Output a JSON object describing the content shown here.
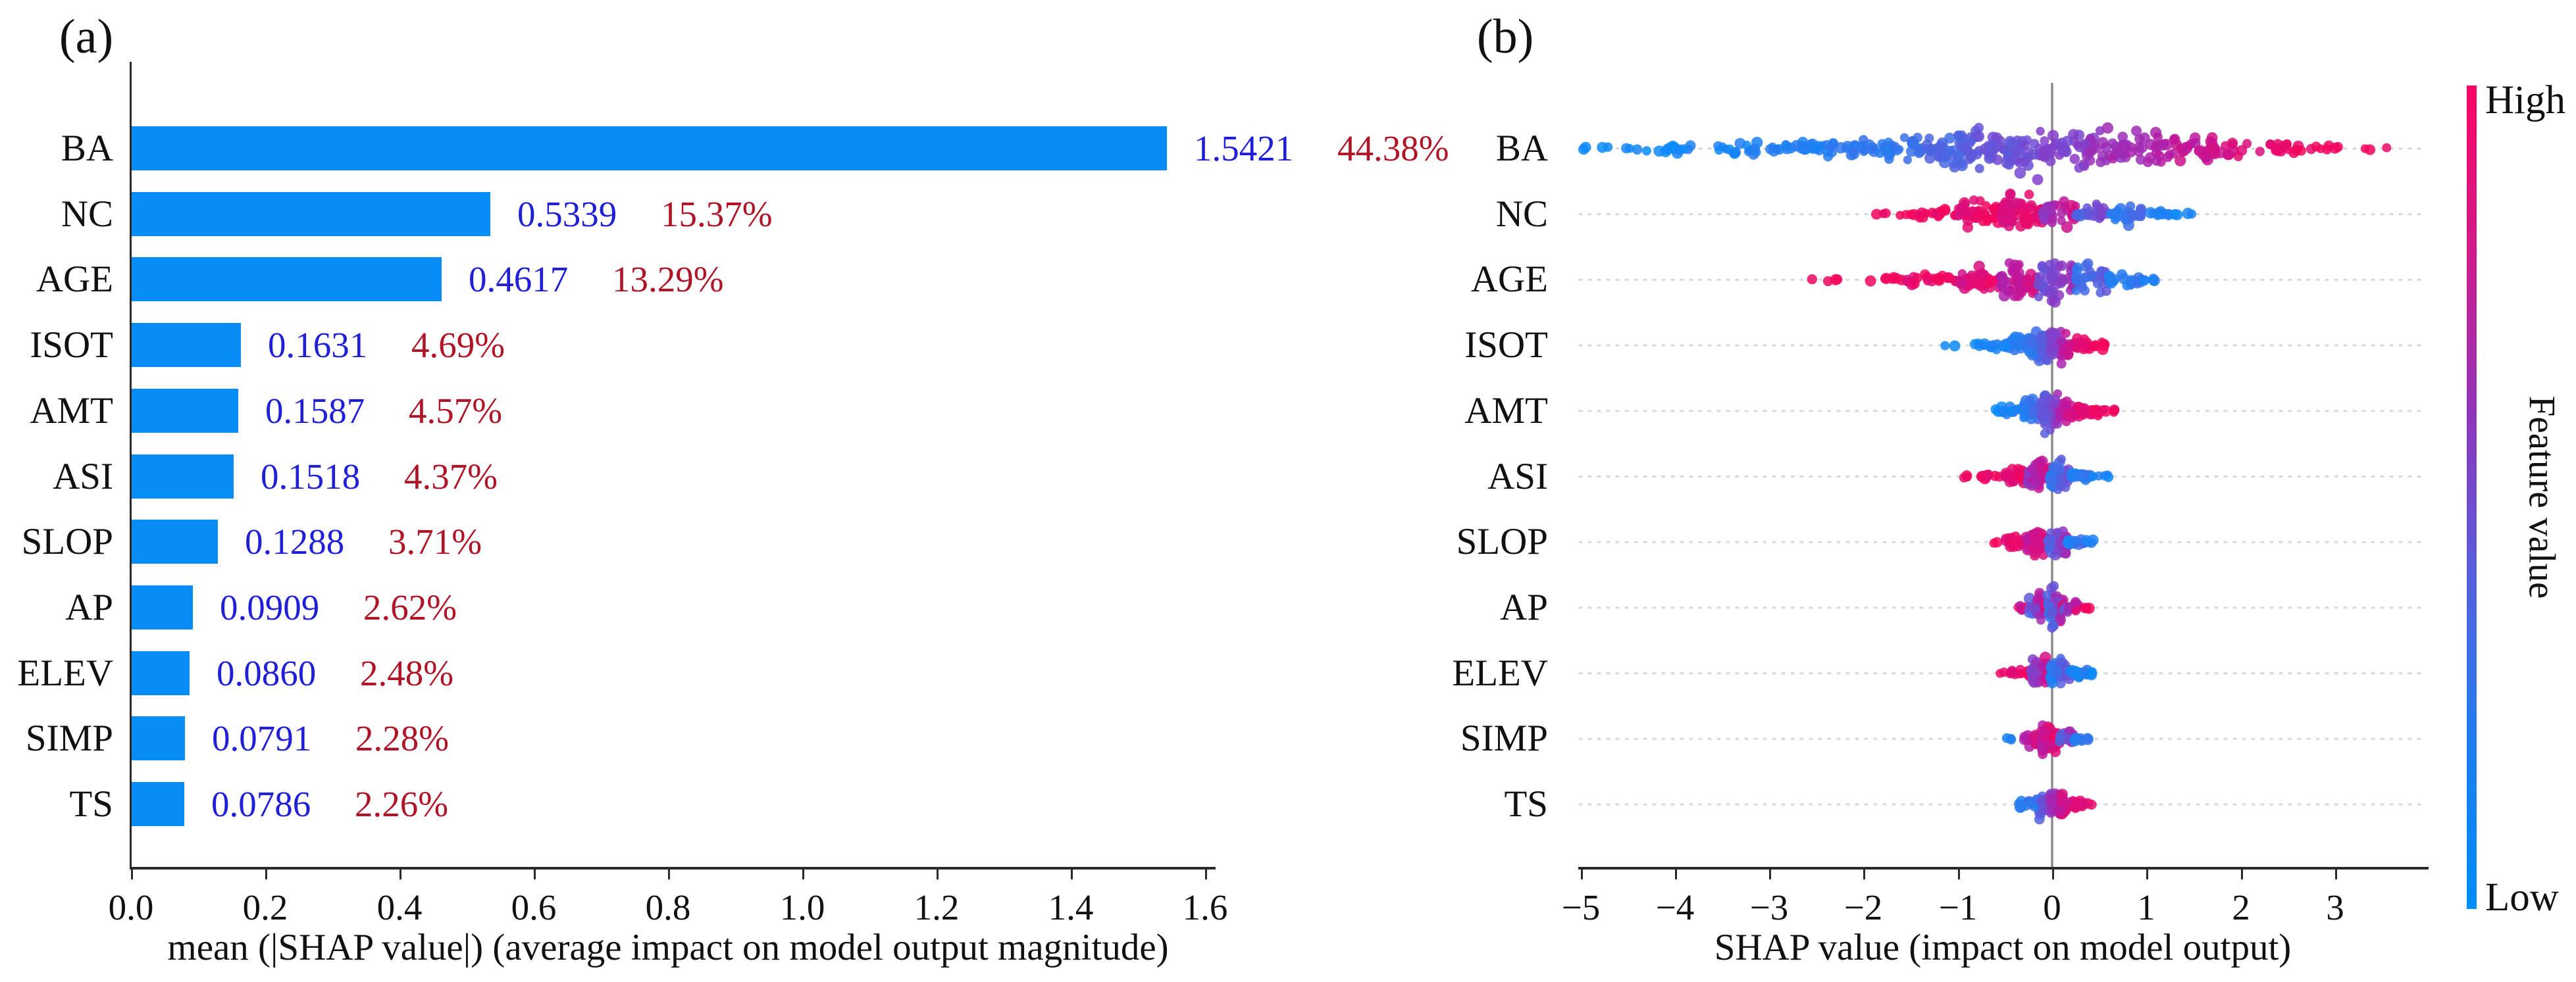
{
  "figure": {
    "color_meaning": "red/pink = high feature value, blue = low feature value"
  },
  "chart_data": [
    {
      "type": "bar",
      "panel_tag": "(a)",
      "orientation": "horizontal",
      "categories": [
        "BA",
        "NC",
        "AGE",
        "ISOT",
        "AMT",
        "ASI",
        "SLOP",
        "AP",
        "ELEV",
        "SIMP",
        "TS"
      ],
      "values": [
        1.5421,
        0.5339,
        0.4617,
        0.1631,
        0.1587,
        0.1518,
        0.1288,
        0.0909,
        0.086,
        0.0791,
        0.0786
      ],
      "value_labels": [
        "1.5421",
        "0.5339",
        "0.4617",
        "0.1631",
        "0.1587",
        "0.1518",
        "0.1288",
        "0.0909",
        "0.0860",
        "0.0791",
        "0.0786"
      ],
      "pct_labels": [
        "44.38%",
        "15.37%",
        "13.29%",
        "4.69%",
        "4.57%",
        "4.37%",
        "3.71%",
        "2.62%",
        "2.48%",
        "2.28%",
        "2.26%"
      ],
      "xlabel": "mean (|SHAP value|) (average impact on model output magnitude)",
      "xticks": [
        "0.0",
        "0.2",
        "0.4",
        "0.6",
        "0.8",
        "1.0",
        "1.2",
        "1.4",
        "1.6"
      ],
      "xtick_values": [
        0.0,
        0.2,
        0.4,
        0.6,
        0.8,
        1.0,
        1.2,
        1.4,
        1.6
      ],
      "xlim": [
        0,
        1.66
      ],
      "grid": false,
      "bar_color": "#078df5",
      "value_color": "#1f1fd8",
      "pct_color": "#b01527"
    },
    {
      "type": "scatter",
      "subtype": "beeswarm",
      "panel_tag": "(b)",
      "categories": [
        "BA",
        "NC",
        "AGE",
        "ISOT",
        "AMT",
        "ASI",
        "SLOP",
        "AP",
        "ELEV",
        "SIMP",
        "TS"
      ],
      "xlabel": "SHAP value (impact on model output)",
      "xticks": [
        "−5",
        "−4",
        "−3",
        "−2",
        "−1",
        "0",
        "1",
        "2",
        "3"
      ],
      "xtick_values": [
        -5,
        -4,
        -3,
        -2,
        -1,
        0,
        1,
        2,
        3
      ],
      "xlim": [
        -5.2,
        3.97
      ],
      "zero_line_color": "#8c8c8c",
      "grid_dot_color": "#d9d9d9",
      "colorbar": {
        "high_label": "High",
        "low_label": "Low",
        "axis_label": "Feature value",
        "high_color": "#f8055e",
        "low_color": "#008cfb",
        "gradient_stops": [
          "#fb0562",
          "#d01a8a",
          "#8e36b8",
          "#5560dd",
          "#1e7ef0",
          "#008cfb"
        ]
      },
      "point_color_stops": [
        [
          0,
          "#0a8cfa"
        ],
        [
          0.3,
          "#4b66e3"
        ],
        [
          0.52,
          "#7d43cd"
        ],
        [
          0.75,
          "#bb17a0"
        ],
        [
          1,
          "#f5055c"
        ]
      ],
      "series": [
        {
          "name": "BA",
          "x_range": [
            -5.0,
            3.55
          ],
          "mix": 0.1,
          "clusters": [
            [
              -5.0,
              -4.35,
              7,
              6,
              0.02,
              0.05
            ],
            [
              -4.35,
              -3.55,
              13,
              9,
              0.03,
              0.08
            ],
            [
              -3.55,
              -2.65,
              28,
              16,
              0.05,
              0.13
            ],
            [
              -2.65,
              -1.85,
              38,
              24,
              0.08,
              0.2
            ],
            [
              -1.85,
              -1.15,
              45,
              32,
              0.14,
              0.33
            ],
            [
              -1.15,
              -0.5,
              55,
              48,
              0.28,
              0.48
            ],
            [
              -0.5,
              0.1,
              52,
              58,
              0.4,
              0.56
            ],
            [
              0.1,
              0.7,
              46,
              50,
              0.5,
              0.68
            ],
            [
              0.7,
              1.4,
              44,
              40,
              0.6,
              0.8
            ],
            [
              1.4,
              2.1,
              34,
              29,
              0.74,
              0.92
            ],
            [
              2.1,
              2.7,
              18,
              16,
              0.87,
              0.98
            ],
            [
              2.7,
              3.1,
              7,
              8,
              0.95,
              1
            ],
            [
              3.25,
              3.55,
              3,
              5,
              1,
              1
            ]
          ]
        },
        {
          "name": "NC",
          "x_range": [
            -1.9,
            1.55
          ],
          "mix": 0.1,
          "clusters": [
            [
              -1.9,
              -1.45,
              7,
              6,
              0.98,
              1
            ],
            [
              -1.45,
              -1.0,
              16,
              12,
              0.95,
              1
            ],
            [
              -1.0,
              -0.55,
              40,
              34,
              0.9,
              1
            ],
            [
              -0.55,
              -0.1,
              55,
              48,
              0.84,
              0.97
            ],
            [
              -0.1,
              0.25,
              34,
              34,
              0.6,
              0.85
            ],
            [
              0.25,
              0.6,
              22,
              22,
              0.3,
              0.55
            ],
            [
              0.6,
              0.95,
              24,
              20,
              0.08,
              0.3
            ],
            [
              0.95,
              1.3,
              11,
              10,
              0.05,
              0.15
            ],
            [
              1.3,
              1.55,
              4,
              6,
              0.02,
              0.08
            ]
          ]
        },
        {
          "name": "AGE",
          "x_range": [
            -2.55,
            1.15
          ],
          "mix": 0.1,
          "clusters": [
            [
              -2.55,
              -2.1,
              4,
              5,
              1,
              1
            ],
            [
              -2.1,
              -1.55,
              7,
              7,
              0.97,
              1
            ],
            [
              -1.55,
              -1.0,
              20,
              14,
              0.92,
              1
            ],
            [
              -1.0,
              -0.55,
              34,
              26,
              0.84,
              0.97
            ],
            [
              -0.55,
              -0.15,
              48,
              44,
              0.68,
              0.9
            ],
            [
              -0.15,
              0.25,
              46,
              52,
              0.42,
              0.68
            ],
            [
              0.25,
              0.6,
              34,
              40,
              0.18,
              0.42
            ],
            [
              0.6,
              0.95,
              18,
              18,
              0.06,
              0.2
            ],
            [
              0.95,
              1.15,
              5,
              7,
              0.03,
              0.08
            ]
          ]
        },
        {
          "name": "ISOT",
          "x_range": [
            -1.18,
            0.58
          ],
          "mix": 0.1,
          "clusters": [
            [
              -1.18,
              -1.02,
              2,
              4,
              0.02,
              0.05
            ],
            [
              -0.82,
              -0.52,
              10,
              9,
              0.03,
              0.1
            ],
            [
              -0.52,
              -0.26,
              28,
              22,
              0.06,
              0.2
            ],
            [
              -0.26,
              -0.02,
              44,
              44,
              0.14,
              0.45
            ],
            [
              -0.02,
              0.18,
              38,
              40,
              0.5,
              0.85
            ],
            [
              0.18,
              0.4,
              18,
              17,
              0.85,
              1
            ],
            [
              0.4,
              0.58,
              7,
              8,
              0.95,
              1
            ]
          ]
        },
        {
          "name": "AMT",
          "x_range": [
            -0.6,
            0.68
          ],
          "mix": 0.12,
          "clusters": [
            [
              -0.6,
              -0.36,
              13,
              11,
              0.03,
              0.12
            ],
            [
              -0.36,
              -0.12,
              34,
              30,
              0.08,
              0.3
            ],
            [
              -0.12,
              0.08,
              44,
              44,
              0.34,
              0.66
            ],
            [
              0.08,
              0.3,
              34,
              30,
              0.7,
              0.95
            ],
            [
              0.3,
              0.52,
              16,
              13,
              0.9,
              1
            ],
            [
              0.52,
              0.68,
              5,
              6,
              0.97,
              1
            ]
          ]
        },
        {
          "name": "ASI",
          "x_range": [
            -1.06,
            0.6
          ],
          "mix": 0.12,
          "clusters": [
            [
              -1.06,
              -0.9,
              3,
              5,
              1,
              1
            ],
            [
              -0.76,
              -0.5,
              10,
              9,
              0.95,
              1
            ],
            [
              -0.5,
              -0.26,
              28,
              22,
              0.88,
              1
            ],
            [
              -0.26,
              -0.02,
              44,
              42,
              0.58,
              0.9
            ],
            [
              -0.02,
              0.18,
              38,
              36,
              0.15,
              0.5
            ],
            [
              0.18,
              0.42,
              18,
              15,
              0.05,
              0.18
            ],
            [
              0.42,
              0.6,
              5,
              6,
              0.02,
              0.08
            ]
          ]
        },
        {
          "name": "SLOP",
          "x_range": [
            -0.68,
            0.48
          ],
          "mix": 0.12,
          "clusters": [
            [
              -0.68,
              -0.58,
              2,
              4,
              1,
              1
            ],
            [
              -0.5,
              -0.28,
              18,
              15,
              0.92,
              1
            ],
            [
              -0.28,
              -0.04,
              44,
              40,
              0.78,
              0.97
            ],
            [
              -0.04,
              0.16,
              38,
              36,
              0.3,
              0.7
            ],
            [
              0.16,
              0.35,
              16,
              13,
              0.08,
              0.3
            ],
            [
              0.35,
              0.48,
              4,
              6,
              0.03,
              0.1
            ]
          ]
        },
        {
          "name": "AP",
          "x_range": [
            -0.38,
            0.4
          ],
          "mix": 0.3,
          "clusters": [
            [
              -0.38,
              -0.26,
              6,
              7,
              0.8,
              1
            ],
            [
              -0.26,
              -0.06,
              34,
              30,
              0.25,
              0.9
            ],
            [
              -0.06,
              0.12,
              44,
              40,
              0.2,
              0.85
            ],
            [
              0.12,
              0.28,
              16,
              13,
              0.35,
              0.95
            ],
            [
              0.28,
              0.4,
              4,
              5,
              0.75,
              1
            ]
          ]
        },
        {
          "name": "ELEV",
          "x_range": [
            -0.58,
            0.5
          ],
          "mix": 0.12,
          "clusters": [
            [
              -0.58,
              -0.44,
              4,
              5,
              1,
              1
            ],
            [
              -0.44,
              -0.22,
              13,
              11,
              0.9,
              1
            ],
            [
              -0.22,
              -0.02,
              40,
              38,
              0.5,
              0.9
            ],
            [
              -0.02,
              0.18,
              40,
              34,
              0.1,
              0.5
            ],
            [
              0.18,
              0.38,
              16,
              11,
              0.03,
              0.15
            ],
            [
              0.38,
              0.5,
              4,
              5,
              0.02,
              0.08
            ]
          ]
        },
        {
          "name": "SIMP",
          "x_range": [
            -0.5,
            0.4
          ],
          "mix": 0.15,
          "clusters": [
            [
              -0.5,
              -0.4,
              3,
              5,
              0.04,
              0.1
            ],
            [
              -0.3,
              -0.12,
              18,
              17,
              0.7,
              0.95
            ],
            [
              -0.12,
              0.08,
              44,
              40,
              0.75,
              1
            ],
            [
              0.08,
              0.22,
              18,
              17,
              0.3,
              0.7
            ],
            [
              0.22,
              0.4,
              9,
              8,
              0.05,
              0.25
            ]
          ]
        },
        {
          "name": "TS",
          "x_range": [
            -0.36,
            0.46
          ],
          "mix": 0.15,
          "clusters": [
            [
              -0.36,
              -0.18,
              11,
              10,
              0.05,
              0.25
            ],
            [
              -0.18,
              -0.02,
              28,
              28,
              0.15,
              0.6
            ],
            [
              -0.02,
              0.16,
              40,
              38,
              0.6,
              0.95
            ],
            [
              0.16,
              0.32,
              16,
              14,
              0.8,
              1
            ],
            [
              0.32,
              0.46,
              4,
              6,
              0.9,
              1
            ]
          ]
        }
      ]
    }
  ]
}
